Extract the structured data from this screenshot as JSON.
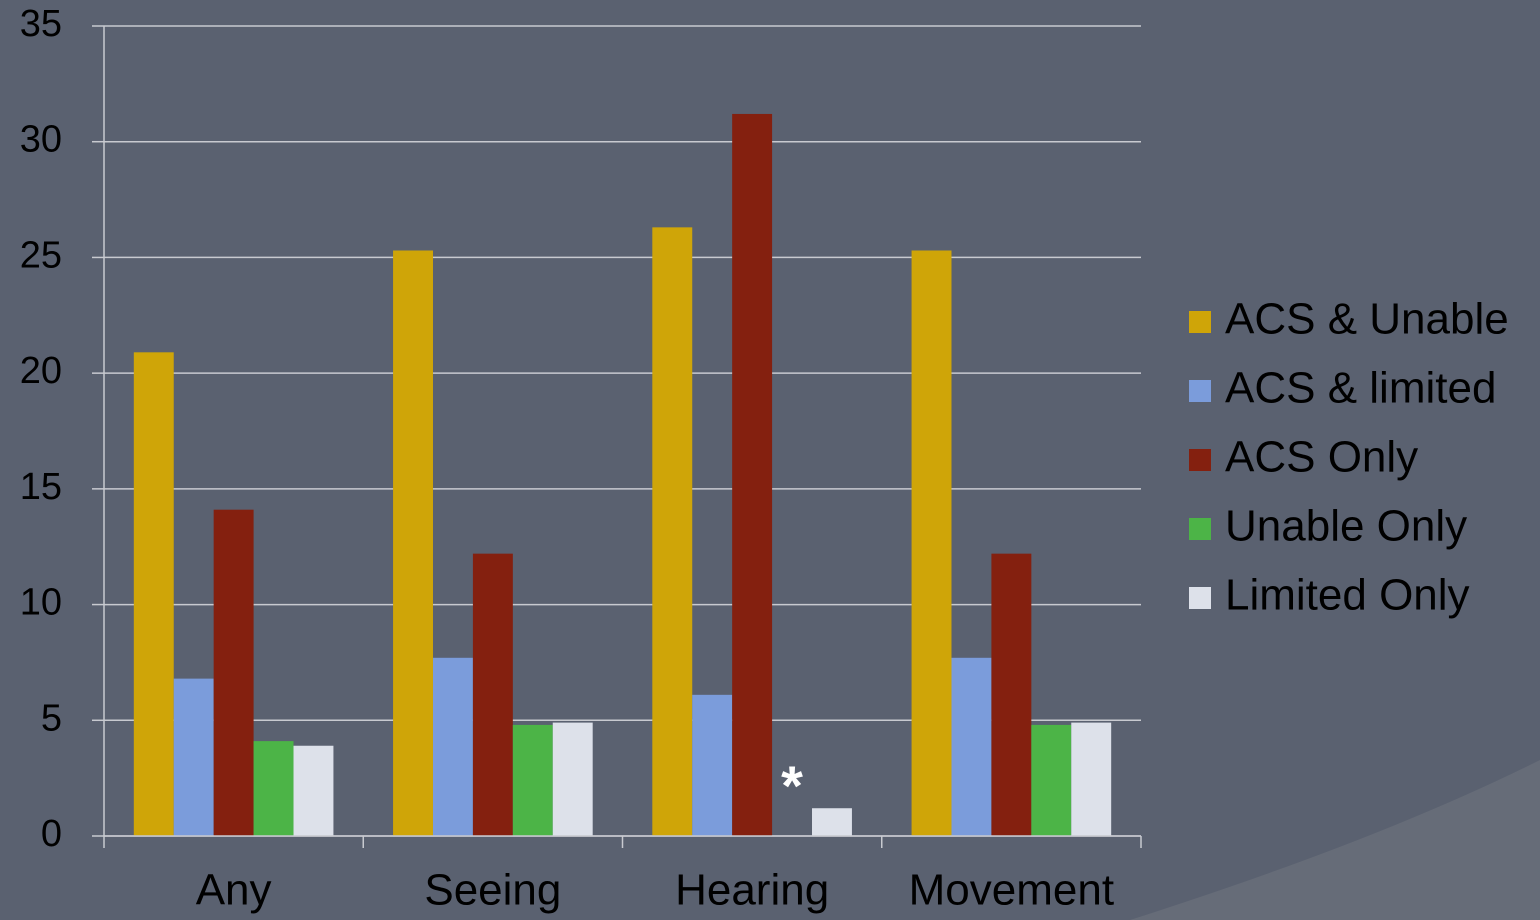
{
  "chart_data": {
    "type": "bar",
    "categories": [
      "Any",
      "Seeing",
      "Hearing",
      "Movement"
    ],
    "series": [
      {
        "name": "ACS & Unable",
        "color": "#cfa508",
        "values": [
          20.9,
          25.3,
          26.3,
          25.3
        ]
      },
      {
        "name": "ACS & limited",
        "color": "#7b9cdb",
        "values": [
          6.8,
          7.7,
          6.1,
          7.7
        ]
      },
      {
        "name": "ACS Only",
        "color": "#84200f",
        "values": [
          14.1,
          12.2,
          31.2,
          12.2
        ]
      },
      {
        "name": "Unable Only",
        "color": "#4cb447",
        "values": [
          4.1,
          4.8,
          null,
          4.8
        ]
      },
      {
        "name": "Limited Only",
        "color": "#dde1ea",
        "values": [
          3.9,
          4.9,
          1.2,
          4.9
        ]
      }
    ],
    "annotations": [
      {
        "text": "*",
        "category": "Hearing",
        "series": "Unable Only"
      }
    ],
    "ylim": [
      0,
      35
    ],
    "yticks": [
      0,
      5,
      10,
      15,
      20,
      25,
      30,
      35
    ],
    "grid": true,
    "legend": "right"
  }
}
